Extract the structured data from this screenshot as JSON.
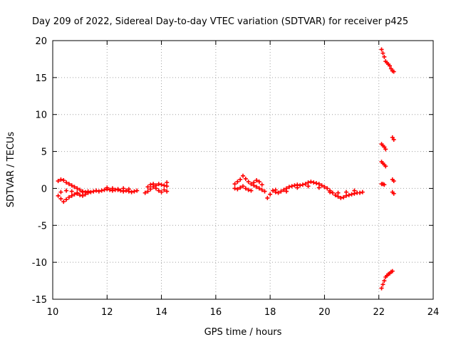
{
  "chart_data": {
    "type": "scatter",
    "title": "Day 209 of 2022, Sidereal Day-to-day VTEC variation (SDTVAR) for receiver p425",
    "xlabel": "GPS time / hours",
    "ylabel": "SDTVAR / TECUs",
    "xlim": [
      10,
      24
    ],
    "ylim": [
      -15,
      20
    ],
    "xticks": [
      10,
      12,
      14,
      16,
      18,
      20,
      22,
      24
    ],
    "yticks": [
      -15,
      -10,
      -5,
      0,
      5,
      10,
      15,
      20
    ],
    "xtick_labels": [
      "10",
      "12",
      "14",
      "16",
      "18",
      "20",
      "22",
      "24"
    ],
    "ytick_labels": [
      "-15",
      "-10",
      "-5",
      "0",
      "5",
      "10",
      "15",
      "20"
    ],
    "grid": true,
    "marker": "plus",
    "series": [
      {
        "name": "SDTVAR p425",
        "color": "#ff0000",
        "points": [
          [
            10.2,
            -1.0
          ],
          [
            10.3,
            -1.4
          ],
          [
            10.4,
            -1.8
          ],
          [
            10.5,
            -1.5
          ],
          [
            10.6,
            -1.2
          ],
          [
            10.7,
            -1.0
          ],
          [
            10.8,
            -0.8
          ],
          [
            10.9,
            -0.7
          ],
          [
            11.0,
            -0.9
          ],
          [
            11.1,
            -1.0
          ],
          [
            11.2,
            -0.8
          ],
          [
            11.3,
            -0.6
          ],
          [
            11.4,
            -0.5
          ],
          [
            11.5,
            -0.4
          ],
          [
            11.6,
            -0.3
          ],
          [
            10.2,
            1.0
          ],
          [
            10.3,
            1.2
          ],
          [
            10.4,
            1.1
          ],
          [
            10.5,
            0.8
          ],
          [
            10.6,
            0.6
          ],
          [
            10.7,
            0.4
          ],
          [
            10.8,
            0.2
          ],
          [
            10.9,
            0.0
          ],
          [
            11.0,
            -0.2
          ],
          [
            11.1,
            -0.4
          ],
          [
            11.2,
            -0.5
          ],
          [
            10.3,
            -0.5
          ],
          [
            10.5,
            -0.3
          ],
          [
            10.7,
            -0.4
          ],
          [
            10.9,
            -0.6
          ],
          [
            11.1,
            -0.5
          ],
          [
            11.3,
            -0.4
          ],
          [
            11.7,
            -0.4
          ],
          [
            11.8,
            -0.3
          ],
          [
            11.9,
            -0.2
          ],
          [
            12.0,
            -0.1
          ],
          [
            12.1,
            -0.2
          ],
          [
            12.2,
            -0.3
          ],
          [
            12.3,
            -0.2
          ],
          [
            12.4,
            -0.2
          ],
          [
            12.5,
            -0.3
          ],
          [
            12.6,
            -0.4
          ],
          [
            12.7,
            -0.3
          ],
          [
            12.8,
            -0.4
          ],
          [
            12.9,
            -0.5
          ],
          [
            13.0,
            -0.4
          ],
          [
            13.1,
            -0.3
          ],
          [
            12.0,
            0.1
          ],
          [
            12.2,
            0.0
          ],
          [
            12.4,
            -0.1
          ],
          [
            12.6,
            0.0
          ],
          [
            12.8,
            -0.1
          ],
          [
            13.4,
            -0.6
          ],
          [
            13.5,
            -0.4
          ],
          [
            13.6,
            -0.1
          ],
          [
            13.7,
            0.2
          ],
          [
            13.8,
            0.4
          ],
          [
            13.9,
            0.6
          ],
          [
            14.0,
            0.5
          ],
          [
            14.1,
            0.4
          ],
          [
            14.2,
            0.3
          ],
          [
            13.5,
            0.2
          ],
          [
            13.6,
            0.5
          ],
          [
            13.7,
            0.6
          ],
          [
            13.8,
            0.0
          ],
          [
            13.9,
            -0.3
          ],
          [
            14.0,
            -0.5
          ],
          [
            14.1,
            -0.2
          ],
          [
            14.2,
            -0.4
          ],
          [
            14.2,
            0.8
          ],
          [
            16.7,
            0.6
          ],
          [
            16.8,
            0.9
          ],
          [
            16.9,
            1.2
          ],
          [
            17.0,
            1.7
          ],
          [
            17.1,
            1.3
          ],
          [
            17.2,
            0.9
          ],
          [
            17.3,
            0.6
          ],
          [
            17.4,
            0.4
          ],
          [
            17.5,
            0.2
          ],
          [
            17.6,
            0.0
          ],
          [
            17.7,
            -0.2
          ],
          [
            17.8,
            -0.4
          ],
          [
            16.7,
            0.0
          ],
          [
            16.8,
            -0.1
          ],
          [
            16.9,
            0.1
          ],
          [
            17.0,
            0.3
          ],
          [
            17.1,
            0.0
          ],
          [
            17.2,
            -0.2
          ],
          [
            17.3,
            -0.3
          ],
          [
            17.4,
            0.8
          ],
          [
            17.5,
            1.1
          ],
          [
            17.6,
            0.9
          ],
          [
            17.7,
            0.5
          ],
          [
            17.9,
            -1.3
          ],
          [
            18.0,
            -0.8
          ],
          [
            18.1,
            -0.3
          ],
          [
            18.2,
            -0.5
          ],
          [
            18.3,
            -0.6
          ],
          [
            18.4,
            -0.4
          ],
          [
            18.5,
            -0.2
          ],
          [
            18.6,
            0.0
          ],
          [
            18.7,
            0.2
          ],
          [
            18.8,
            0.3
          ],
          [
            18.9,
            0.4
          ],
          [
            19.0,
            0.5
          ],
          [
            19.1,
            0.4
          ],
          [
            19.2,
            0.5
          ],
          [
            19.3,
            0.6
          ],
          [
            19.4,
            0.8
          ],
          [
            19.5,
            0.9
          ],
          [
            19.6,
            0.8
          ],
          [
            19.7,
            0.7
          ],
          [
            19.8,
            0.6
          ],
          [
            19.9,
            0.4
          ],
          [
            20.0,
            0.2
          ],
          [
            20.1,
            0.0
          ],
          [
            20.2,
            -0.3
          ],
          [
            20.3,
            -0.6
          ],
          [
            20.4,
            -0.9
          ],
          [
            20.5,
            -1.1
          ],
          [
            20.6,
            -1.3
          ],
          [
            20.7,
            -1.2
          ],
          [
            20.8,
            -1.0
          ],
          [
            20.9,
            -0.9
          ],
          [
            21.0,
            -0.8
          ],
          [
            21.1,
            -0.7
          ],
          [
            21.2,
            -0.6
          ],
          [
            21.3,
            -0.6
          ],
          [
            21.4,
            -0.5
          ],
          [
            18.2,
            -0.2
          ],
          [
            18.6,
            -0.4
          ],
          [
            19.0,
            0.1
          ],
          [
            19.4,
            0.3
          ],
          [
            19.8,
            0.1
          ],
          [
            20.2,
            -0.5
          ],
          [
            20.5,
            -0.6
          ],
          [
            20.8,
            -0.5
          ],
          [
            21.1,
            -0.3
          ],
          [
            22.1,
            18.8
          ],
          [
            22.15,
            18.3
          ],
          [
            22.2,
            17.8
          ],
          [
            22.25,
            17.2
          ],
          [
            22.3,
            17.0
          ],
          [
            22.35,
            16.8
          ],
          [
            22.4,
            16.6
          ],
          [
            22.45,
            16.2
          ],
          [
            22.5,
            15.9
          ],
          [
            22.55,
            15.8
          ],
          [
            22.5,
            6.9
          ],
          [
            22.55,
            6.6
          ],
          [
            22.1,
            6.0
          ],
          [
            22.15,
            5.8
          ],
          [
            22.2,
            5.6
          ],
          [
            22.25,
            5.3
          ],
          [
            22.1,
            3.6
          ],
          [
            22.15,
            3.4
          ],
          [
            22.2,
            3.2
          ],
          [
            22.25,
            3.0
          ],
          [
            22.5,
            1.2
          ],
          [
            22.55,
            1.0
          ],
          [
            22.1,
            0.6
          ],
          [
            22.15,
            0.6
          ],
          [
            22.2,
            0.5
          ],
          [
            22.5,
            -0.5
          ],
          [
            22.55,
            -0.7
          ],
          [
            22.1,
            -13.5
          ],
          [
            22.15,
            -13.0
          ],
          [
            22.2,
            -12.5
          ],
          [
            22.25,
            -12.0
          ],
          [
            22.3,
            -11.8
          ],
          [
            22.35,
            -11.6
          ],
          [
            22.4,
            -11.5
          ],
          [
            22.45,
            -11.3
          ],
          [
            22.5,
            -11.2
          ]
        ]
      }
    ]
  }
}
